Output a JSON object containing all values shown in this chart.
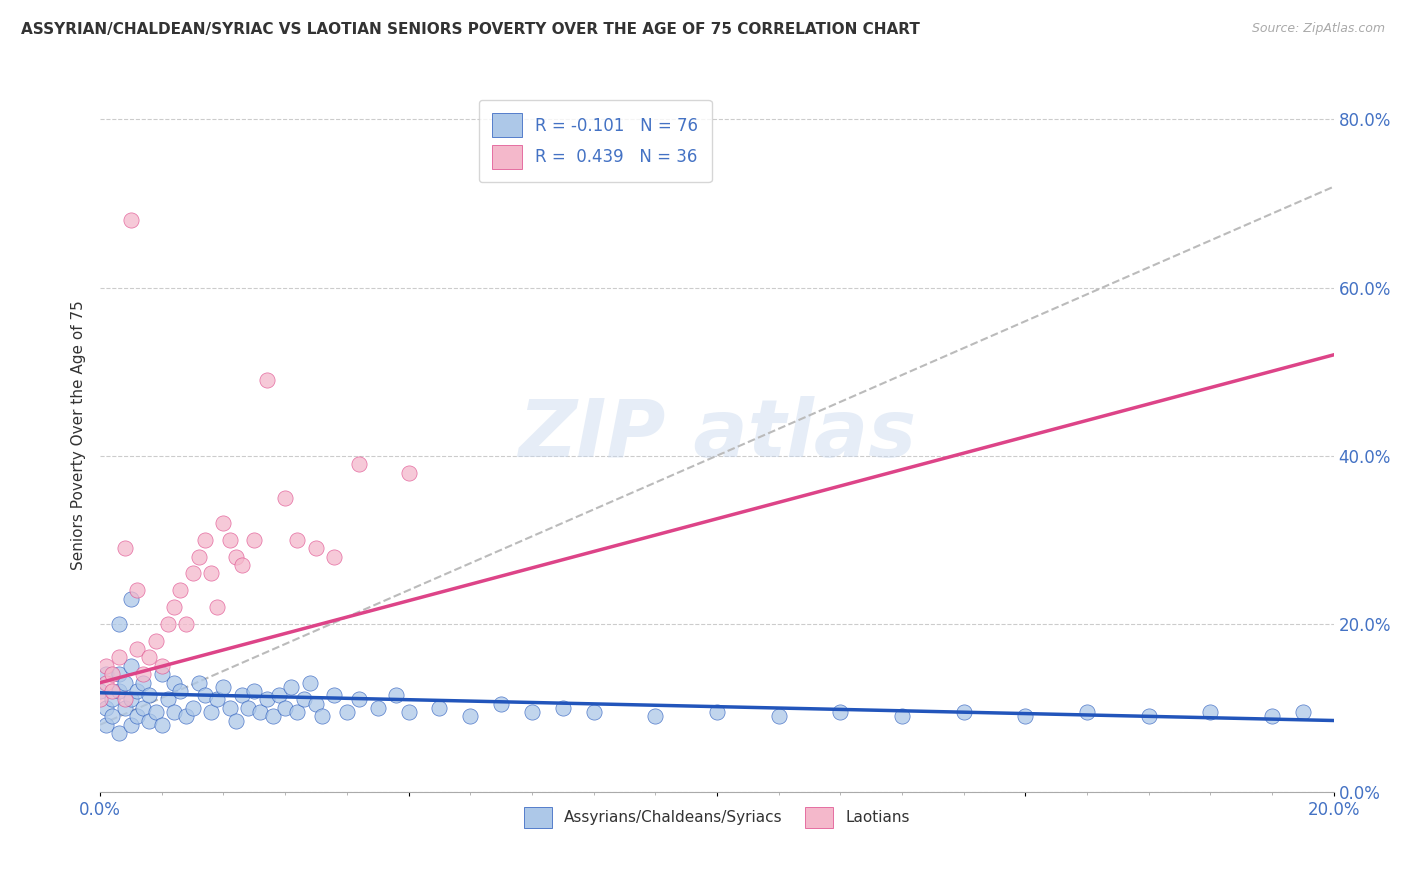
{
  "title": "ASSYRIAN/CHALDEAN/SYRIAC VS LAOTIAN SENIORS POVERTY OVER THE AGE OF 75 CORRELATION CHART",
  "source": "Source: ZipAtlas.com",
  "ylabel": "Seniors Poverty Over the Age of 75",
  "legend_entry1": "R = -0.101   N = 76",
  "legend_entry2": "R =  0.439   N = 36",
  "legend_label1": "Assyrians/Chaldeans/Syriacs",
  "legend_label2": "Laotians",
  "color1": "#adc8e8",
  "color2": "#f4b8cb",
  "line_color1": "#2255bb",
  "line_color2": "#dd4488",
  "trend_line_color": "#bbbbbb",
  "xlim": [
    0.0,
    0.2
  ],
  "ylim": [
    0.0,
    0.85
  ],
  "background_color": "#ffffff",
  "blue_scatter_x": [
    0.0,
    0.001,
    0.001,
    0.001,
    0.002,
    0.002,
    0.003,
    0.003,
    0.003,
    0.004,
    0.004,
    0.005,
    0.005,
    0.005,
    0.006,
    0.006,
    0.007,
    0.007,
    0.008,
    0.008,
    0.009,
    0.01,
    0.01,
    0.011,
    0.012,
    0.012,
    0.013,
    0.014,
    0.015,
    0.016,
    0.017,
    0.018,
    0.019,
    0.02,
    0.021,
    0.022,
    0.023,
    0.024,
    0.025,
    0.026,
    0.027,
    0.028,
    0.029,
    0.03,
    0.031,
    0.032,
    0.033,
    0.034,
    0.035,
    0.036,
    0.038,
    0.04,
    0.042,
    0.045,
    0.048,
    0.05,
    0.055,
    0.06,
    0.065,
    0.07,
    0.075,
    0.08,
    0.09,
    0.1,
    0.11,
    0.12,
    0.13,
    0.14,
    0.15,
    0.16,
    0.17,
    0.18,
    0.19,
    0.195,
    0.003,
    0.005
  ],
  "blue_scatter_y": [
    0.12,
    0.08,
    0.1,
    0.14,
    0.09,
    0.11,
    0.07,
    0.12,
    0.14,
    0.1,
    0.13,
    0.08,
    0.11,
    0.15,
    0.09,
    0.12,
    0.1,
    0.13,
    0.085,
    0.115,
    0.095,
    0.08,
    0.14,
    0.11,
    0.095,
    0.13,
    0.12,
    0.09,
    0.1,
    0.13,
    0.115,
    0.095,
    0.11,
    0.125,
    0.1,
    0.085,
    0.115,
    0.1,
    0.12,
    0.095,
    0.11,
    0.09,
    0.115,
    0.1,
    0.125,
    0.095,
    0.11,
    0.13,
    0.105,
    0.09,
    0.115,
    0.095,
    0.11,
    0.1,
    0.115,
    0.095,
    0.1,
    0.09,
    0.105,
    0.095,
    0.1,
    0.095,
    0.09,
    0.095,
    0.09,
    0.095,
    0.09,
    0.095,
    0.09,
    0.095,
    0.09,
    0.095,
    0.09,
    0.095,
    0.2,
    0.23
  ],
  "pink_scatter_x": [
    0.0,
    0.001,
    0.001,
    0.002,
    0.002,
    0.003,
    0.004,
    0.005,
    0.006,
    0.007,
    0.008,
    0.009,
    0.01,
    0.011,
    0.012,
    0.013,
    0.014,
    0.015,
    0.016,
    0.017,
    0.018,
    0.019,
    0.02,
    0.021,
    0.022,
    0.023,
    0.025,
    0.027,
    0.03,
    0.032,
    0.035,
    0.038,
    0.042,
    0.05,
    0.004,
    0.006
  ],
  "pink_scatter_y": [
    0.11,
    0.13,
    0.15,
    0.12,
    0.14,
    0.16,
    0.11,
    0.68,
    0.17,
    0.14,
    0.16,
    0.18,
    0.15,
    0.2,
    0.22,
    0.24,
    0.2,
    0.26,
    0.28,
    0.3,
    0.26,
    0.22,
    0.32,
    0.3,
    0.28,
    0.27,
    0.3,
    0.49,
    0.35,
    0.3,
    0.29,
    0.28,
    0.39,
    0.38,
    0.29,
    0.24
  ],
  "blue_trendline_x": [
    0.0,
    0.2
  ],
  "blue_trendline_y": [
    0.118,
    0.085
  ],
  "pink_trendline_x": [
    0.0,
    0.2
  ],
  "pink_trendline_y": [
    0.13,
    0.52
  ],
  "diagonal_trend_x": [
    0.0,
    0.2
  ],
  "diagonal_trend_y": [
    0.08,
    0.72
  ]
}
